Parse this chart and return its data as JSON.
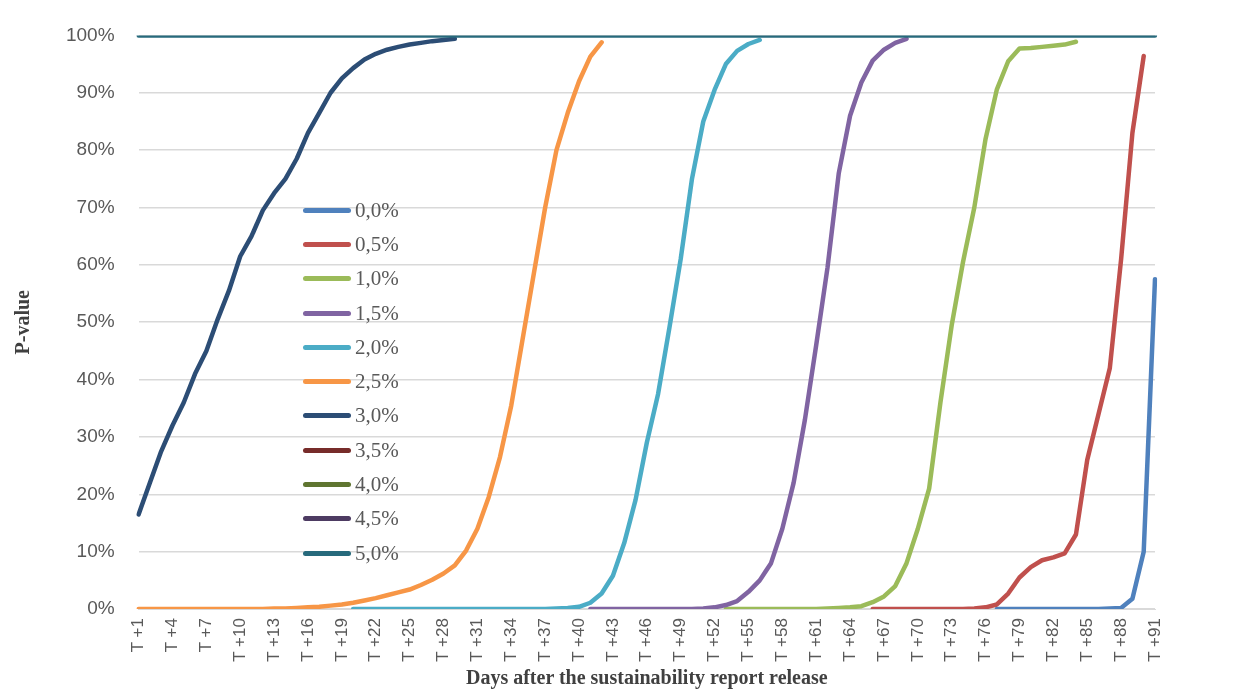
{
  "chart_data": {
    "type": "line",
    "xlabel": "Days after the sustainability report release",
    "ylabel": "P-value",
    "categories": [
      "T +1",
      null,
      null,
      "T +4",
      null,
      null,
      "T +7",
      null,
      null,
      "T +10",
      null,
      null,
      "T +13",
      null,
      null,
      "T +16",
      null,
      null,
      "T +19",
      null,
      null,
      "T +22",
      null,
      null,
      "T +25",
      null,
      null,
      "T +28",
      null,
      null,
      "T +31",
      null,
      null,
      "T +34",
      null,
      null,
      "T +37",
      null,
      null,
      "T +40",
      null,
      null,
      "T +43",
      null,
      null,
      "T +46",
      null,
      null,
      "T +49",
      null,
      null,
      "T +52",
      null,
      null,
      "T +55",
      null,
      null,
      "T +58",
      null,
      null,
      "T +61",
      null,
      null,
      "T +64",
      null,
      null,
      "T +67",
      null,
      null,
      "T +70",
      null,
      null,
      "T +73",
      null,
      null,
      "T +76",
      null,
      null,
      "T +79",
      null,
      null,
      "T +82",
      null,
      null,
      "T +85",
      null,
      null,
      "T +88",
      null,
      null,
      "T +91"
    ],
    "series": [
      {
        "name": "0,0%",
        "color": "#4f81bd",
        "values": [
          null,
          null,
          null,
          null,
          null,
          null,
          null,
          null,
          null,
          null,
          null,
          null,
          null,
          null,
          null,
          null,
          null,
          null,
          null,
          null,
          null,
          null,
          null,
          null,
          null,
          null,
          null,
          null,
          null,
          null,
          null,
          null,
          null,
          null,
          null,
          null,
          null,
          null,
          null,
          null,
          null,
          null,
          null,
          null,
          null,
          null,
          null,
          null,
          null,
          null,
          null,
          null,
          null,
          null,
          null,
          null,
          null,
          null,
          null,
          null,
          null,
          null,
          null,
          null,
          null,
          null,
          null,
          null,
          null,
          null,
          null,
          null,
          null,
          null,
          null,
          null,
          0,
          0,
          0,
          0,
          0,
          0,
          0,
          0,
          0,
          0,
          0.1,
          0.2,
          1.8,
          10,
          57.5
        ]
      },
      {
        "name": "0,5%",
        "color": "#c0504d",
        "values": [
          null,
          null,
          null,
          null,
          null,
          null,
          null,
          null,
          null,
          null,
          null,
          null,
          null,
          null,
          null,
          null,
          null,
          null,
          null,
          null,
          null,
          null,
          null,
          null,
          null,
          null,
          null,
          null,
          null,
          null,
          null,
          null,
          null,
          null,
          null,
          null,
          null,
          null,
          null,
          null,
          null,
          null,
          null,
          null,
          null,
          null,
          null,
          null,
          null,
          null,
          null,
          null,
          null,
          null,
          null,
          null,
          null,
          null,
          null,
          null,
          null,
          null,
          null,
          null,
          null,
          0,
          0,
          0,
          0,
          0,
          0,
          0,
          0,
          0,
          0.1,
          0.3,
          0.8,
          2.7,
          5.5,
          7.3,
          8.5,
          9,
          9.7,
          13,
          26,
          34,
          42,
          61,
          83,
          96.4,
          null
        ]
      },
      {
        "name": "1,0%",
        "color": "#9bbb59",
        "values": [
          null,
          null,
          null,
          null,
          null,
          null,
          null,
          null,
          null,
          null,
          null,
          null,
          null,
          null,
          null,
          null,
          null,
          null,
          null,
          null,
          null,
          null,
          null,
          null,
          null,
          null,
          null,
          null,
          null,
          null,
          null,
          null,
          null,
          null,
          null,
          null,
          null,
          null,
          null,
          null,
          null,
          null,
          null,
          null,
          null,
          null,
          null,
          null,
          null,
          null,
          null,
          null,
          0,
          0,
          0,
          0,
          0,
          0,
          0,
          0,
          0,
          0.1,
          0.2,
          0.3,
          0.5,
          1.2,
          2.2,
          4,
          8,
          14,
          21,
          36,
          49.5,
          60.5,
          70,
          82,
          90.6,
          95.5,
          97.7,
          97.8,
          98,
          98.2,
          98.4,
          98.9,
          null,
          null,
          null,
          null,
          null,
          null,
          null
        ]
      },
      {
        "name": "1,5%",
        "color": "#8064a2",
        "values": [
          null,
          null,
          null,
          null,
          null,
          null,
          null,
          null,
          null,
          null,
          null,
          null,
          null,
          null,
          null,
          null,
          null,
          null,
          null,
          null,
          null,
          null,
          null,
          null,
          null,
          null,
          null,
          null,
          null,
          null,
          null,
          null,
          null,
          null,
          null,
          null,
          null,
          null,
          null,
          null,
          0,
          0,
          0,
          0,
          0,
          0,
          0,
          0,
          0,
          0,
          0.1,
          0.3,
          0.7,
          1.4,
          3,
          5,
          8,
          14,
          22,
          33,
          46,
          59.5,
          76,
          86,
          91.8,
          95.6,
          97.5,
          98.7,
          99.4,
          null,
          null,
          null,
          null,
          null,
          null,
          null,
          null,
          null,
          null,
          null,
          null,
          null,
          null,
          null,
          null,
          null,
          null,
          null,
          null,
          null,
          null
        ]
      },
      {
        "name": "2,0%",
        "color": "#4bacc6",
        "values": [
          null,
          null,
          null,
          null,
          null,
          null,
          null,
          null,
          null,
          null,
          null,
          null,
          null,
          null,
          null,
          null,
          null,
          null,
          null,
          0,
          0,
          0,
          0,
          0,
          0,
          0,
          0,
          0,
          0,
          0,
          0,
          0,
          0,
          0,
          0,
          0,
          0,
          0.1,
          0.2,
          0.4,
          1.1,
          2.7,
          5.8,
          11.5,
          19,
          29,
          37.5,
          49,
          61,
          75,
          85,
          90.5,
          95,
          97.3,
          98.5,
          99.2,
          null,
          null,
          null,
          null,
          null,
          null,
          null,
          null,
          null,
          null,
          null,
          null,
          null,
          null,
          null,
          null,
          null,
          null,
          null,
          null,
          null,
          null,
          null,
          null,
          null,
          null,
          null,
          null,
          null,
          null,
          null,
          null,
          null,
          null,
          null
        ]
      },
      {
        "name": "2,5%",
        "color": "#f79646",
        "values": [
          0,
          0,
          0,
          0,
          0,
          0,
          0,
          0,
          0,
          0,
          0,
          0,
          0.1,
          0.1,
          0.2,
          0.3,
          0.4,
          0.6,
          0.8,
          1.1,
          1.5,
          1.9,
          2.4,
          2.9,
          3.4,
          4.2,
          5.1,
          6.2,
          7.6,
          10.2,
          14,
          19.5,
          26.5,
          35.5,
          47,
          58.5,
          70,
          80,
          86.5,
          92,
          96.3,
          98.8,
          null,
          null,
          null,
          null,
          null,
          null,
          null,
          null,
          null,
          null,
          null,
          null,
          null,
          null,
          null,
          null,
          null,
          null,
          null,
          null,
          null,
          null,
          null,
          null,
          null,
          null,
          null,
          null,
          null,
          null,
          null,
          null,
          null,
          null,
          null,
          null,
          null,
          null,
          null,
          null,
          null,
          null,
          null,
          null,
          null,
          null,
          null,
          null,
          null
        ]
      },
      {
        "name": "3,0%",
        "color": "#2c4d75",
        "values": [
          16.5,
          22,
          27.5,
          32,
          36,
          41,
          45,
          50.5,
          55.5,
          61.5,
          65,
          69.5,
          72.5,
          75,
          78.5,
          83,
          86.5,
          90,
          92.5,
          94.3,
          95.8,
          96.8,
          97.5,
          98,
          98.4,
          98.7,
          99,
          99.2,
          99.4,
          null,
          null,
          null,
          null,
          null,
          null,
          null,
          null,
          null,
          null,
          null,
          null,
          null,
          null,
          null,
          null,
          null,
          null,
          null,
          null,
          null,
          null,
          null,
          null,
          null,
          null,
          null,
          null,
          null,
          null,
          null,
          null,
          null,
          null,
          null,
          null,
          null,
          null,
          null,
          null,
          null,
          null,
          null,
          null,
          null,
          null,
          null,
          null,
          null,
          null,
          null,
          null,
          null,
          null,
          null,
          null,
          null,
          null,
          null,
          null,
          null,
          null
        ]
      },
      {
        "name": "3,5%",
        "color": "#772c2a",
        "values": [
          null,
          null,
          null,
          null,
          null,
          null,
          null,
          null,
          null,
          null,
          null,
          null,
          null,
          null,
          null,
          null,
          null,
          null,
          null,
          null,
          null,
          null,
          null,
          null,
          null,
          null,
          null,
          null,
          null,
          null,
          null,
          null,
          null,
          null,
          null,
          null,
          null,
          null,
          null,
          null,
          null,
          null,
          null,
          null,
          null,
          null,
          null,
          null,
          null,
          null,
          null,
          null,
          null,
          null,
          null,
          null,
          null,
          null,
          null,
          null,
          null,
          null,
          null,
          null,
          null,
          null,
          null,
          null,
          null,
          null,
          null,
          null,
          null,
          null,
          null,
          null,
          null,
          null,
          null,
          null,
          null,
          null,
          null,
          null,
          null,
          null,
          null,
          null,
          null,
          null,
          null
        ]
      },
      {
        "name": "4,0%",
        "color": "#5f7530",
        "values": [
          null,
          null,
          null,
          null,
          null,
          null,
          null,
          null,
          null,
          null,
          null,
          null,
          null,
          null,
          null,
          null,
          null,
          null,
          null,
          null,
          null,
          null,
          null,
          null,
          null,
          null,
          null,
          null,
          null,
          null,
          null,
          null,
          null,
          null,
          null,
          null,
          null,
          null,
          null,
          null,
          null,
          null,
          null,
          null,
          null,
          null,
          null,
          null,
          null,
          null,
          null,
          null,
          null,
          null,
          null,
          null,
          null,
          null,
          null,
          null,
          null,
          null,
          null,
          null,
          null,
          null,
          null,
          null,
          null,
          null,
          null,
          null,
          null,
          null,
          null,
          null,
          null,
          null,
          null,
          null,
          null,
          null,
          null,
          null,
          null,
          null,
          null,
          null,
          null,
          null,
          null
        ]
      },
      {
        "name": "4,5%",
        "color": "#4d3b62",
        "values": [
          null,
          null,
          null,
          null,
          null,
          null,
          null,
          null,
          null,
          null,
          null,
          null,
          null,
          null,
          null,
          null,
          null,
          null,
          null,
          null,
          null,
          null,
          null,
          null,
          null,
          null,
          null,
          null,
          null,
          null,
          null,
          null,
          null,
          null,
          null,
          null,
          null,
          null,
          null,
          null,
          null,
          null,
          null,
          null,
          null,
          null,
          null,
          null,
          null,
          null,
          null,
          null,
          null,
          null,
          null,
          null,
          null,
          null,
          null,
          null,
          null,
          null,
          null,
          null,
          null,
          null,
          null,
          null,
          null,
          null,
          null,
          null,
          null,
          null,
          null,
          null,
          null,
          null,
          null,
          null,
          null,
          null,
          null,
          null,
          null,
          null,
          null,
          null,
          null,
          null,
          null
        ]
      },
      {
        "name": "5,0%",
        "color": "#276a7c",
        "values": [
          100,
          100,
          100,
          100,
          100,
          100,
          100,
          100,
          100,
          100,
          100,
          100,
          100,
          100,
          100,
          100,
          100,
          100,
          100,
          100,
          100,
          100,
          100,
          100,
          100,
          100,
          100,
          100,
          100,
          100,
          100,
          100,
          100,
          100,
          100,
          100,
          100,
          100,
          100,
          100,
          100,
          100,
          100,
          100,
          100,
          100,
          100,
          100,
          100,
          100,
          100,
          100,
          100,
          100,
          100,
          100,
          100,
          100,
          100,
          100,
          100,
          100,
          100,
          100,
          100,
          100,
          100,
          100,
          100,
          100,
          100,
          100,
          100,
          100,
          100,
          100,
          100,
          100,
          100,
          100,
          100,
          100,
          100,
          100,
          100,
          100,
          100,
          100,
          100,
          100,
          100
        ]
      }
    ],
    "ylim": [
      0,
      100
    ],
    "yticks": [
      {
        "value": 0,
        "label": "0%"
      },
      {
        "value": 10,
        "label": "10%"
      },
      {
        "value": 20,
        "label": "20%"
      },
      {
        "value": 30,
        "label": "30%"
      },
      {
        "value": 40,
        "label": "40%"
      },
      {
        "value": 50,
        "label": "50%"
      },
      {
        "value": 60,
        "label": "60%"
      },
      {
        "value": 70,
        "label": "70%"
      },
      {
        "value": 80,
        "label": "80%"
      },
      {
        "value": 90,
        "label": "90%"
      },
      {
        "value": 100,
        "label": "100%"
      }
    ],
    "grid": "y",
    "legend": "left"
  }
}
